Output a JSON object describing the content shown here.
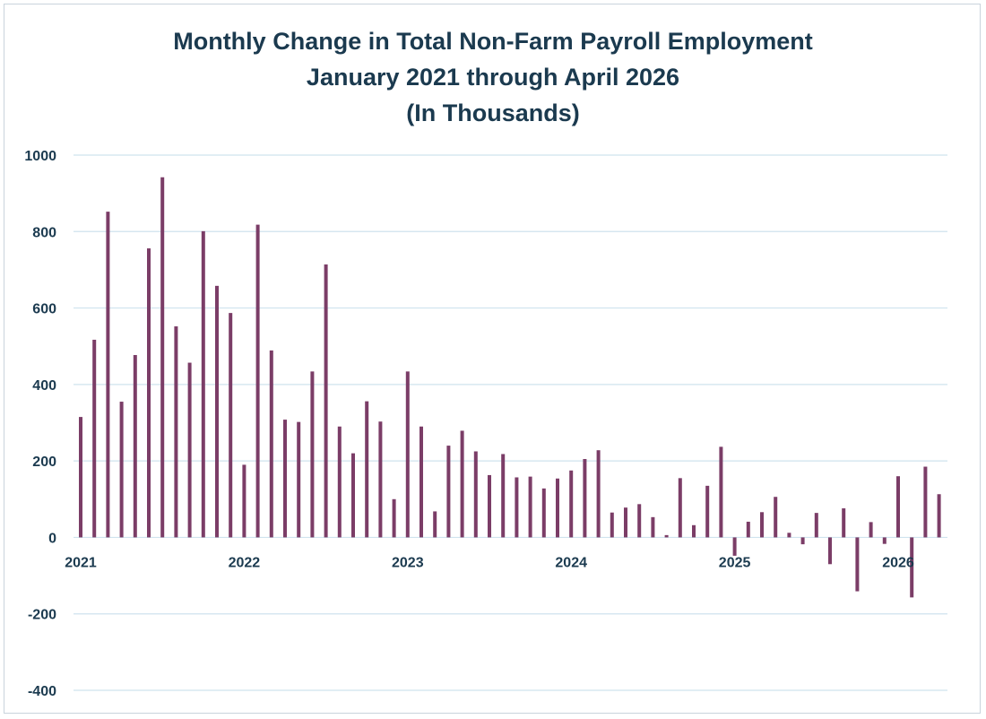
{
  "chart_data": {
    "type": "bar",
    "title": [
      "Monthly Change in Total Non-Farm Payroll Employment",
      "January 2021 through April 2026",
      "(In Thousands)"
    ],
    "xlabel": "",
    "ylabel": "",
    "ylim": [
      -400,
      1000
    ],
    "yticks": [
      -400,
      -200,
      0,
      200,
      400,
      600,
      800,
      1000
    ],
    "ytick_labels": [
      "-400",
      "-200",
      "0",
      "200",
      "400",
      "600",
      "800",
      "1000"
    ],
    "xtick_labels": [
      "2021",
      "2022",
      "2023",
      "2024",
      "2025",
      "2026"
    ],
    "grid": true,
    "bar_color": "#7b3d67",
    "grid_color": "#cfe3ee",
    "text_color": "#1b3a4f",
    "categories": [
      "2021-01",
      "2021-02",
      "2021-03",
      "2021-04",
      "2021-05",
      "2021-06",
      "2021-07",
      "2021-08",
      "2021-09",
      "2021-10",
      "2021-11",
      "2021-12",
      "2022-01",
      "2022-02",
      "2022-03",
      "2022-04",
      "2022-05",
      "2022-06",
      "2022-07",
      "2022-08",
      "2022-09",
      "2022-10",
      "2022-11",
      "2022-12",
      "2023-01",
      "2023-02",
      "2023-03",
      "2023-04",
      "2023-05",
      "2023-06",
      "2023-07",
      "2023-08",
      "2023-09",
      "2023-10",
      "2023-11",
      "2023-12",
      "2024-01",
      "2024-02",
      "2024-03",
      "2024-04",
      "2024-05",
      "2024-06",
      "2024-07",
      "2024-08",
      "2024-09",
      "2024-10",
      "2024-11",
      "2024-12",
      "2025-01",
      "2025-02",
      "2025-03",
      "2025-04",
      "2025-05",
      "2025-06",
      "2025-07",
      "2025-08",
      "2025-09",
      "2025-10",
      "2025-11",
      "2025-12",
      "2026-01",
      "2026-02",
      "2026-03",
      "2026-04"
    ],
    "values": [
      315,
      517,
      852,
      355,
      477,
      756,
      942,
      552,
      457,
      801,
      658,
      587,
      190,
      818,
      489,
      308,
      302,
      434,
      714,
      290,
      220,
      356,
      303,
      100,
      434,
      290,
      68,
      240,
      279,
      225,
      163,
      218,
      157,
      159,
      128,
      154,
      175,
      205,
      228,
      65,
      78,
      87,
      53,
      6,
      155,
      32,
      135,
      237,
      -48,
      41,
      66,
      106,
      12,
      -18,
      64,
      -70,
      76,
      -141,
      40,
      -17,
      160,
      -157,
      185,
      113
    ]
  }
}
